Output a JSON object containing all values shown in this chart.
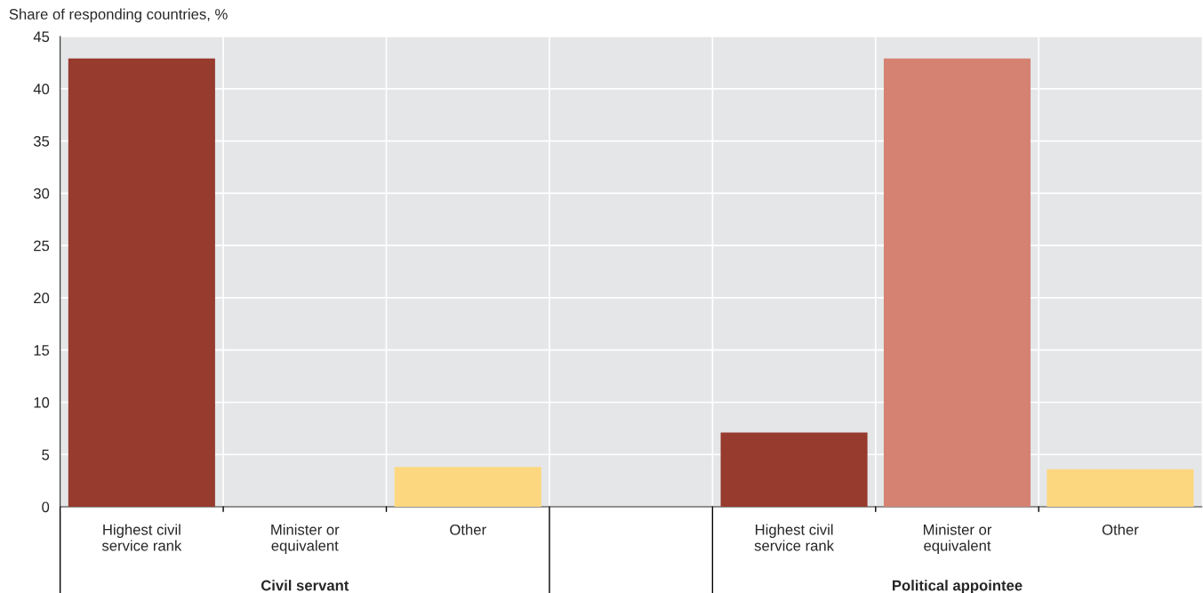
{
  "chart_data": {
    "type": "bar",
    "ylabel": "Share of responding countries, %",
    "categories": [
      "Highest civil\nservice rank",
      "Minister or\nequivalent",
      "Other",
      null,
      "Highest civil\nservice rank",
      "Minister or\nequivalent",
      "Other"
    ],
    "values": [
      42.9,
      0,
      3.8,
      null,
      7.1,
      42.9,
      3.6
    ],
    "colors": [
      "#963b2e",
      "#d58272",
      "#fdd77f",
      "#e5e6e8",
      "#963b2e",
      "#d58272",
      "#fdd77f"
    ],
    "ylim": [
      0,
      45
    ],
    "yticks": [
      0,
      5,
      10,
      15,
      20,
      25,
      30,
      35,
      40,
      45
    ],
    "grid": true,
    "annotations": [
      "Civil servant",
      "Political appointee"
    ]
  }
}
